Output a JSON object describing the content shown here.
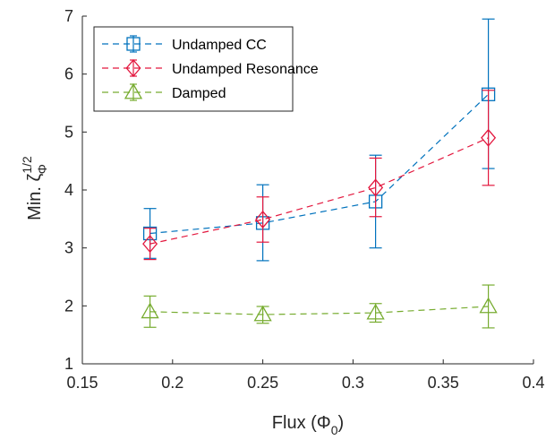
{
  "chart_data": {
    "type": "line",
    "x": [
      0.1875,
      0.25,
      0.3125,
      0.375
    ],
    "xlim": [
      0.15,
      0.4
    ],
    "ylim": [
      1,
      7
    ],
    "xticks": [
      "0.15",
      "0.2",
      "0.25",
      "0.3",
      "0.35",
      "0.4"
    ],
    "yticks": [
      "1",
      "2",
      "3",
      "4",
      "5",
      "6",
      "7"
    ],
    "xlabel": {
      "main": "Flux (Φ",
      "sub": "0",
      "close": ")"
    },
    "ylabel": {
      "main": "Min. ζ",
      "sub": "Φ",
      "sup": "1/2"
    },
    "grid": false,
    "legend_position": "top-left",
    "series": [
      {
        "name": "Undamped CC",
        "marker": "square",
        "color": "#0072BD",
        "values": [
          3.25,
          3.43,
          3.8,
          5.65
        ],
        "err_low": [
          2.82,
          2.78,
          3.0,
          4.37
        ],
        "err_high": [
          3.68,
          4.09,
          4.6,
          6.95
        ]
      },
      {
        "name": "Undamped Resonance",
        "marker": "diamond",
        "color": "#E3173E",
        "values": [
          3.07,
          3.49,
          4.04,
          4.9
        ],
        "err_low": [
          2.8,
          3.1,
          3.54,
          4.08
        ],
        "err_high": [
          3.34,
          3.88,
          4.55,
          5.72
        ]
      },
      {
        "name": "Damped",
        "marker": "triangle",
        "color": "#77AC30",
        "values": [
          1.9,
          1.85,
          1.88,
          1.99
        ],
        "err_low": [
          1.63,
          1.7,
          1.72,
          1.62
        ],
        "err_high": [
          2.17,
          1.99,
          2.04,
          2.36
        ]
      }
    ]
  }
}
